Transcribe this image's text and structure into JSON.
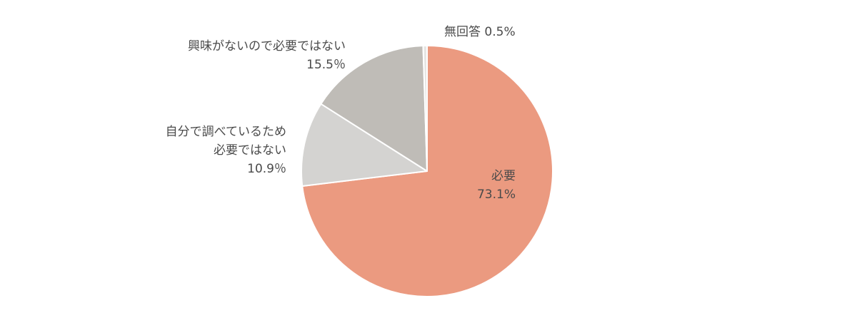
{
  "chart_data": {
    "type": "pie",
    "start_angle": "12 o'clock",
    "direction": "clockwise",
    "slices": [
      {
        "label_lines": [
          "必要"
        ],
        "value": 73.1,
        "value_label": "73.1%",
        "color": "#eb9a80"
      },
      {
        "label_lines": [
          "自分で調べているため",
          "必要ではない"
        ],
        "value": 10.9,
        "value_label": "10.9％",
        "color": "#d4d3d1"
      },
      {
        "label_lines": [
          "興味がないので必要ではない"
        ],
        "value": 15.5,
        "value_label": "15.5％",
        "color": "#bfbcb7"
      },
      {
        "label_lines": [
          "無回答"
        ],
        "value": 0.5,
        "value_label": "0.5%",
        "color": "#e6e5e3"
      }
    ]
  }
}
